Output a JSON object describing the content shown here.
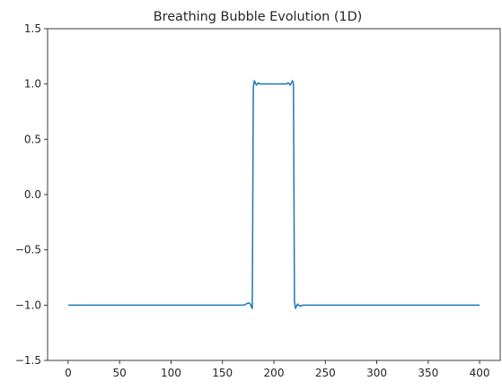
{
  "chart_data": {
    "type": "line",
    "title": "Breathing Bubble Evolution (1D)",
    "xlabel": "",
    "ylabel": "",
    "xlim": [
      -20,
      420
    ],
    "ylim": [
      -1.5,
      1.5
    ],
    "grid": false,
    "xticks": [
      0,
      50,
      100,
      150,
      200,
      250,
      300,
      350,
      400
    ],
    "yticks": [
      -1.5,
      -1.0,
      -0.5,
      0.0,
      0.5,
      1.0,
      1.5
    ],
    "xtick_labels": [
      "0",
      "50",
      "100",
      "150",
      "200",
      "250",
      "300",
      "350",
      "400"
    ],
    "ytick_labels": [
      "−1.5",
      "−1.0",
      "−0.5",
      "0.0",
      "0.5",
      "1.0",
      "1.5"
    ],
    "series": [
      {
        "color": "#1f77b4",
        "x": [
          0,
          170,
          172,
          174,
          176,
          177,
          178,
          179,
          180,
          181,
          182,
          183,
          184,
          185,
          186,
          188,
          190,
          195,
          200,
          205,
          210,
          212,
          214,
          215,
          216,
          217,
          218,
          219,
          220,
          221,
          222,
          223,
          224,
          226,
          228,
          230,
          235,
          400
        ],
        "y": [
          -1.0,
          -1.0,
          -0.995,
          -0.985,
          -0.98,
          -0.99,
          -1.01,
          -1.03,
          0.97,
          1.03,
          1.01,
          0.99,
          1.0,
          1.01,
          1.0,
          1.0,
          1.0,
          1.0,
          1.0,
          1.0,
          1.0,
          1.0,
          1.01,
          1.0,
          0.99,
          1.01,
          1.03,
          1.0,
          -0.97,
          -1.03,
          -1.01,
          -0.99,
          -1.0,
          -1.01,
          -1.0,
          -1.0,
          -1.0,
          -1.0
        ]
      }
    ]
  }
}
